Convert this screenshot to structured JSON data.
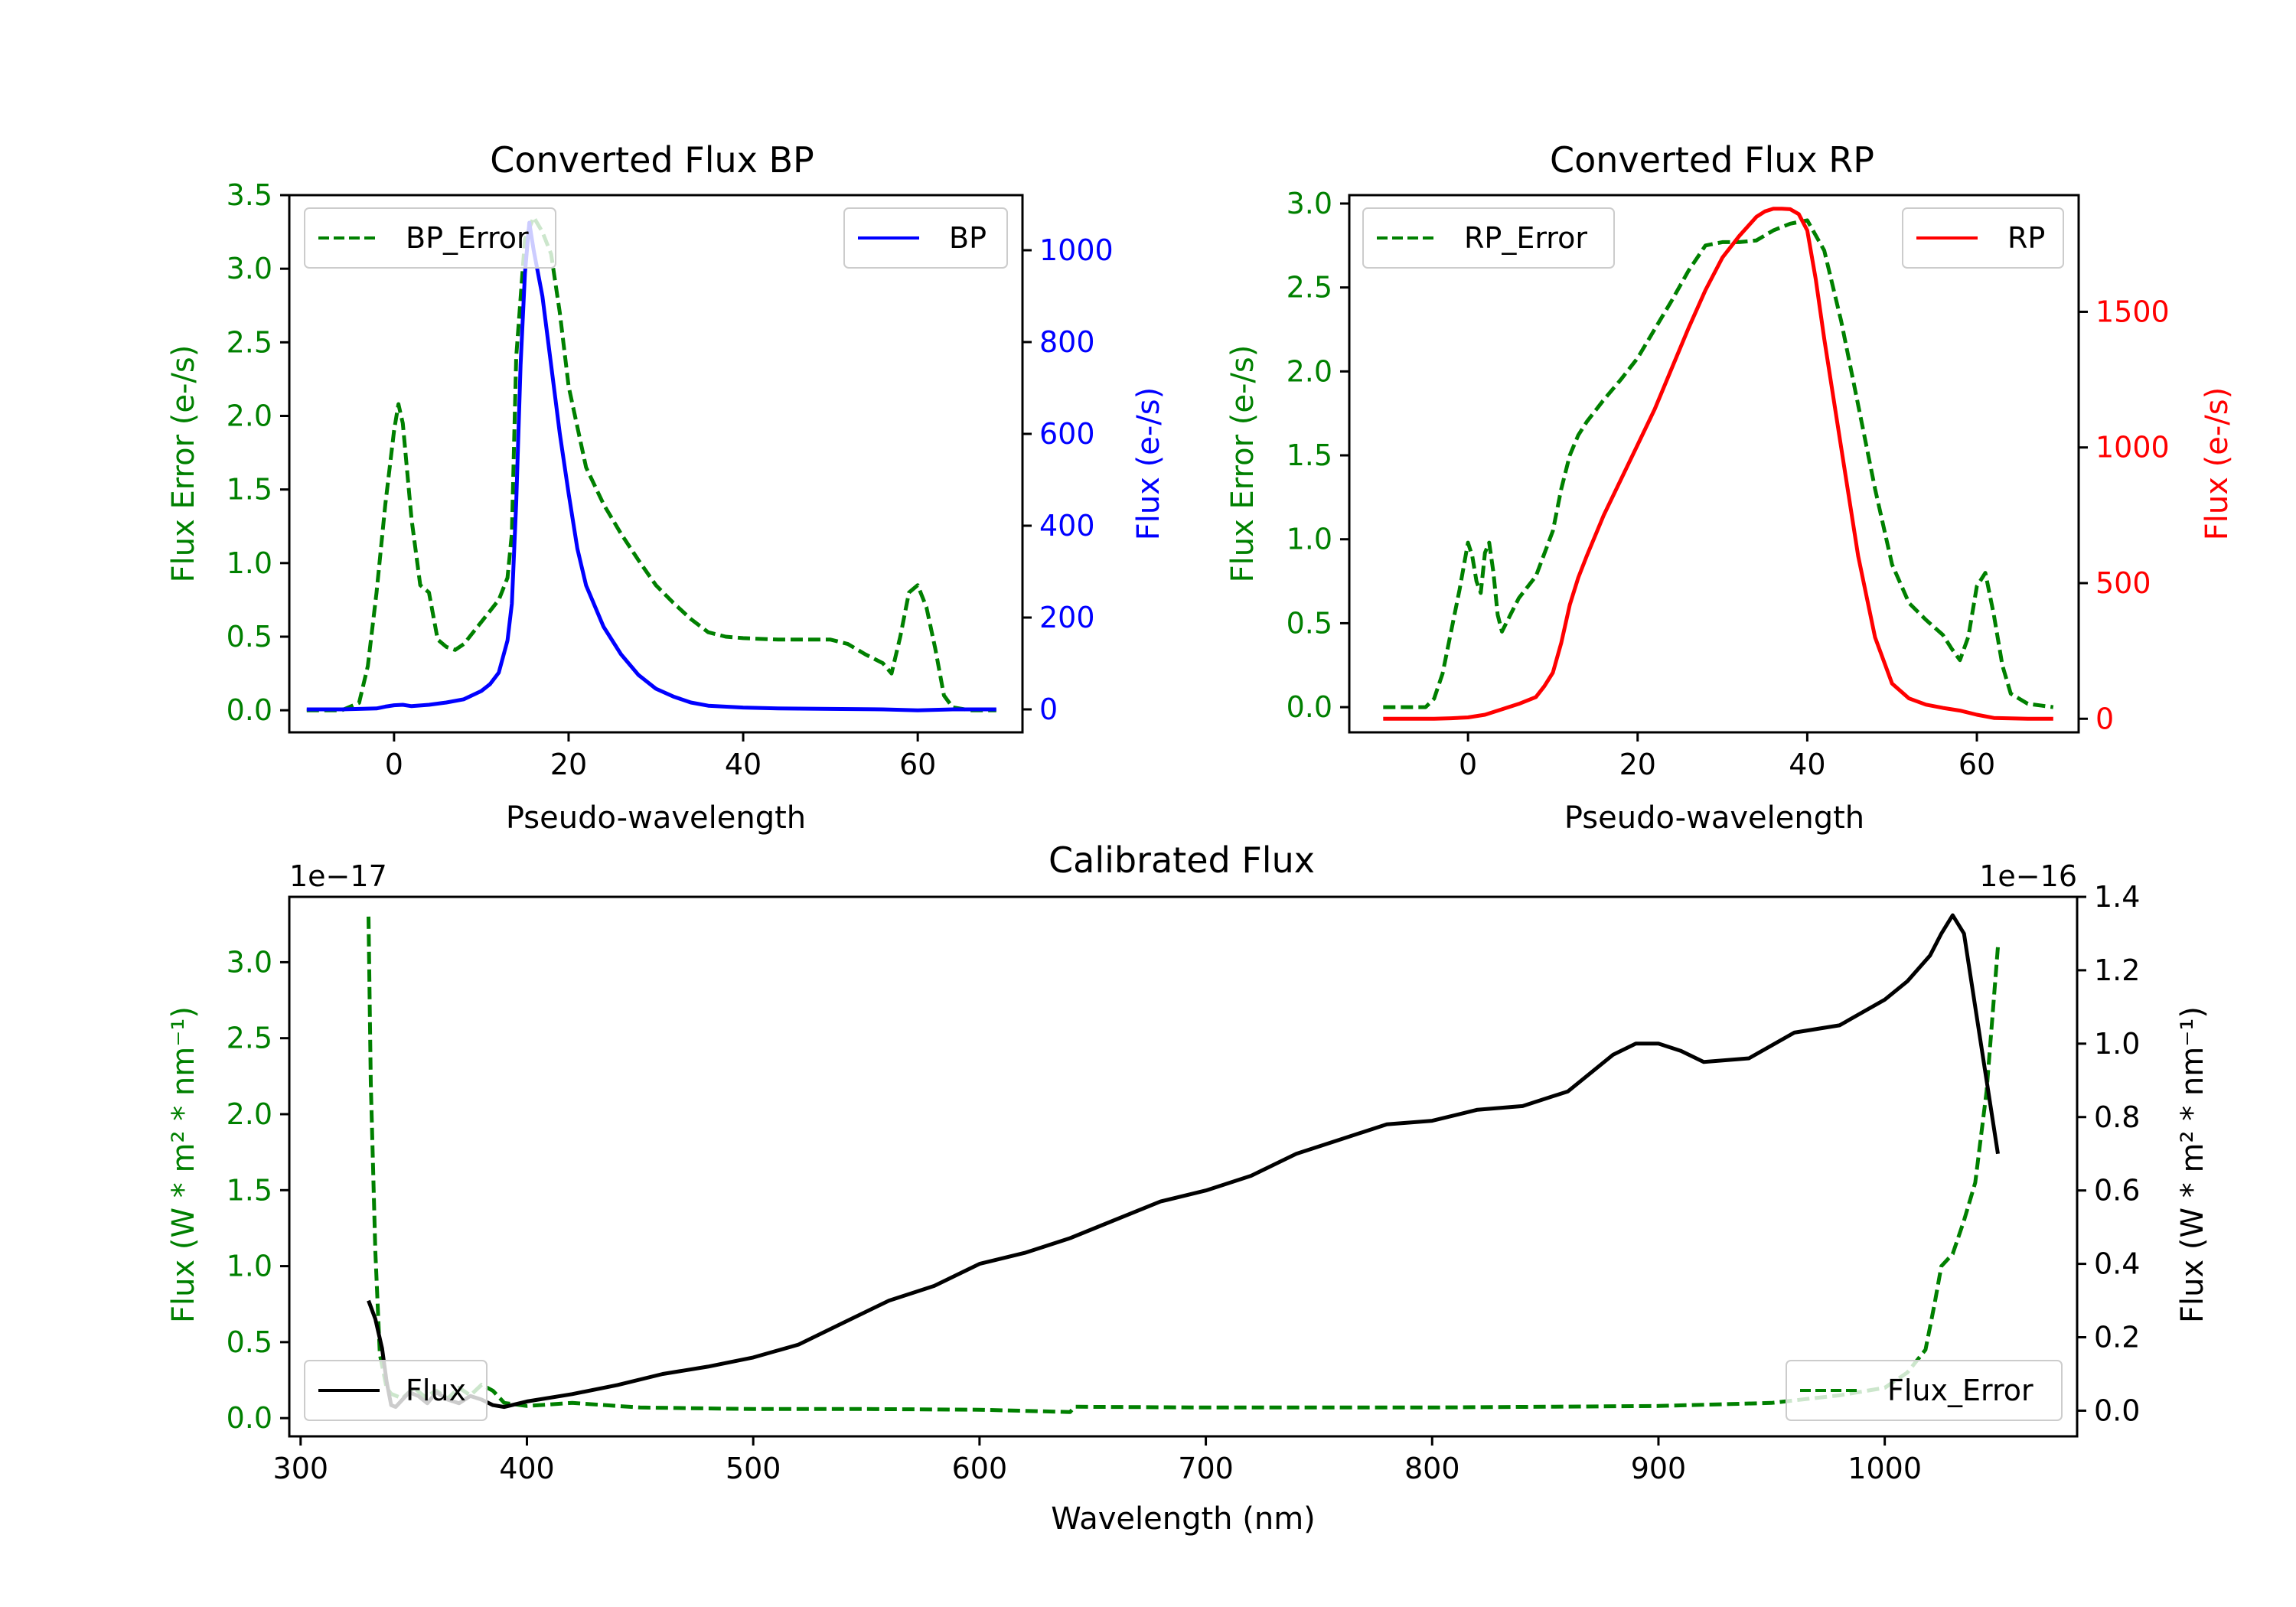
{
  "chart_data": [
    {
      "type": "line",
      "title": "Converted Flux BP",
      "xlabel": "Pseudo-wavelength",
      "ylabel_left": "Flux Error (e-/s)",
      "ylabel_right": "Flux (e-/s)",
      "xlim": [
        -12,
        72
      ],
      "ylim_left": [
        -0.15,
        3.5
      ],
      "ylim_right": [
        -50,
        1120
      ],
      "xticks": [
        "0",
        "20",
        "40",
        "60"
      ],
      "yticks_left": [
        "0.0",
        "0.5",
        "1.0",
        "1.5",
        "2.0",
        "2.5",
        "3.0",
        "3.5"
      ],
      "yticks_right": [
        "0",
        "200",
        "400",
        "600",
        "800",
        "1000"
      ],
      "colors": {
        "error": "#008000",
        "flux": "#0000ff",
        "left_axis": "#008000",
        "right_axis": "#0000ff"
      },
      "series": [
        {
          "name": "BP_Error",
          "style": "dashed",
          "axis": "left",
          "x": [
            -10,
            -6,
            -4,
            -3,
            -2,
            -1,
            0,
            0.5,
            1,
            2,
            3,
            4,
            5,
            6,
            7,
            8,
            10,
            12,
            13,
            13.5,
            14,
            15,
            16,
            17,
            18,
            19,
            20,
            22,
            24,
            26,
            28,
            30,
            32,
            34,
            36,
            38,
            40,
            44,
            48,
            50,
            52,
            54,
            56,
            57,
            58,
            59,
            60,
            61,
            62,
            63,
            64,
            66,
            69
          ],
          "values": [
            0.0,
            0.0,
            0.05,
            0.3,
            0.8,
            1.4,
            1.9,
            2.08,
            1.95,
            1.3,
            0.85,
            0.8,
            0.48,
            0.43,
            0.41,
            0.45,
            0.6,
            0.75,
            0.9,
            1.2,
            2.4,
            3.2,
            3.35,
            3.25,
            3.1,
            2.7,
            2.2,
            1.65,
            1.4,
            1.2,
            1.02,
            0.85,
            0.73,
            0.62,
            0.53,
            0.5,
            0.49,
            0.48,
            0.48,
            0.48,
            0.45,
            0.38,
            0.32,
            0.25,
            0.5,
            0.8,
            0.85,
            0.7,
            0.42,
            0.1,
            0.02,
            0.0,
            0.0
          ]
        },
        {
          "name": "BP",
          "style": "solid",
          "axis": "right",
          "x": [
            -10,
            -6,
            -4,
            -2,
            -1,
            0,
            1,
            2,
            4,
            6,
            8,
            10,
            11,
            12,
            13,
            13.5,
            14,
            14.5,
            15,
            15.5,
            16,
            17,
            18,
            19,
            20,
            21,
            22,
            24,
            26,
            28,
            30,
            32,
            34,
            36,
            40,
            44,
            50,
            56,
            60,
            64,
            69
          ],
          "values": [
            0,
            0,
            1,
            2,
            6,
            9,
            10,
            7,
            10,
            15,
            22,
            40,
            55,
            80,
            150,
            230,
            450,
            750,
            950,
            1060,
            1000,
            900,
            750,
            600,
            470,
            350,
            270,
            180,
            120,
            75,
            45,
            28,
            15,
            8,
            4,
            2,
            1,
            0,
            -2,
            0,
            0
          ]
        }
      ],
      "legend": [
        "BP_Error",
        "BP"
      ]
    },
    {
      "type": "line",
      "title": "Converted Flux RP",
      "xlabel": "Pseudo-wavelength",
      "ylabel_left": "Flux Error (e-/s)",
      "ylabel_right": "Flux (e-/s)",
      "xlim": [
        -14,
        72
      ],
      "ylim_left": [
        -0.15,
        3.05
      ],
      "ylim_right": [
        -50,
        1930
      ],
      "xticks": [
        "0",
        "20",
        "40",
        "60"
      ],
      "yticks_left": [
        "0.0",
        "0.5",
        "1.0",
        "1.5",
        "2.0",
        "2.5",
        "3.0"
      ],
      "yticks_right": [
        "0",
        "500",
        "1000",
        "1500"
      ],
      "colors": {
        "error": "#008000",
        "flux": "#ff0000",
        "left_axis": "#008000",
        "right_axis": "#ff0000"
      },
      "series": [
        {
          "name": "RP_Error",
          "style": "dashed",
          "axis": "left",
          "x": [
            -10,
            -5,
            -4,
            -3,
            -2,
            -1,
            0,
            0.5,
            1,
            1.5,
            2,
            2.5,
            3,
            3.5,
            4,
            5,
            6,
            8,
            10,
            11,
            12,
            13,
            14,
            16,
            18,
            20,
            22,
            24,
            26,
            28,
            30,
            32,
            34,
            36,
            38,
            40,
            42,
            44,
            46,
            48,
            50,
            52,
            54,
            56,
            57,
            58,
            59,
            60,
            61,
            62,
            63,
            64,
            66,
            69
          ],
          "values": [
            0.0,
            0.0,
            0.05,
            0.2,
            0.45,
            0.7,
            0.98,
            0.9,
            0.75,
            0.68,
            0.92,
            0.98,
            0.8,
            0.55,
            0.45,
            0.55,
            0.65,
            0.78,
            1.05,
            1.3,
            1.5,
            1.62,
            1.7,
            1.83,
            1.95,
            2.08,
            2.25,
            2.42,
            2.6,
            2.75,
            2.77,
            2.77,
            2.78,
            2.84,
            2.88,
            2.9,
            2.72,
            2.3,
            1.8,
            1.3,
            0.85,
            0.62,
            0.52,
            0.43,
            0.35,
            0.28,
            0.42,
            0.72,
            0.8,
            0.55,
            0.25,
            0.08,
            0.02,
            0.0
          ]
        },
        {
          "name": "RP",
          "style": "solid",
          "axis": "right",
          "x": [
            -10,
            -4,
            -2,
            0,
            2,
            4,
            6,
            8,
            9,
            10,
            11,
            12,
            13,
            14,
            16,
            18,
            20,
            22,
            24,
            26,
            28,
            30,
            32,
            34,
            35,
            36,
            37,
            38,
            39,
            40,
            41,
            42,
            44,
            46,
            48,
            50,
            52,
            54,
            56,
            58,
            60,
            62,
            66,
            69
          ],
          "values": [
            0,
            0,
            2,
            5,
            15,
            35,
            55,
            80,
            120,
            170,
            280,
            420,
            520,
            600,
            750,
            880,
            1010,
            1140,
            1290,
            1440,
            1580,
            1700,
            1780,
            1850,
            1870,
            1880,
            1880,
            1878,
            1860,
            1800,
            1620,
            1400,
            1000,
            600,
            300,
            130,
            75,
            52,
            40,
            30,
            15,
            3,
            0,
            0
          ]
        }
      ],
      "legend": [
        "RP_Error",
        "RP"
      ]
    },
    {
      "type": "line",
      "title": "Calibrated Flux",
      "xlabel": "Wavelength (nm)",
      "ylabel_left": "Flux (W * m² * nm⁻¹)",
      "ylabel_right": "Flux (W * m² * nm⁻¹)",
      "offset_left": "1e−17",
      "offset_right": "1e−16",
      "xlim": [
        295,
        1085
      ],
      "ylim_left": [
        -0.12,
        3.43
      ],
      "ylim_right": [
        -0.07,
        1.4
      ],
      "xticks": [
        "300",
        "400",
        "500",
        "600",
        "700",
        "800",
        "900",
        "1000"
      ],
      "yticks_left": [
        "0.0",
        "0.5",
        "1.0",
        "1.5",
        "2.0",
        "2.5",
        "3.0"
      ],
      "yticks_right": [
        "0.0",
        "0.2",
        "0.4",
        "0.6",
        "0.8",
        "1.0",
        "1.2",
        "1.4"
      ],
      "colors": {
        "error": "#008000",
        "flux": "#000000",
        "left_axis": "#008000",
        "right_axis": "#000000"
      },
      "series": [
        {
          "name": "Flux_Error",
          "style": "dashed",
          "axis": "left",
          "x": [
            330,
            331,
            333,
            335,
            338,
            340,
            345,
            350,
            355,
            360,
            365,
            370,
            375,
            380,
            385,
            390,
            400,
            420,
            450,
            500,
            550,
            600,
            640,
            642,
            700,
            800,
            900,
            950,
            980,
            1000,
            1010,
            1018,
            1022,
            1025,
            1030,
            1035,
            1040,
            1045,
            1050
          ],
          "values": [
            3.3,
            2.2,
            1.1,
            0.42,
            0.2,
            0.16,
            0.13,
            0.2,
            0.14,
            0.18,
            0.13,
            0.2,
            0.15,
            0.22,
            0.18,
            0.1,
            0.08,
            0.1,
            0.07,
            0.06,
            0.06,
            0.055,
            0.04,
            0.075,
            0.07,
            0.07,
            0.08,
            0.1,
            0.15,
            0.2,
            0.3,
            0.45,
            0.75,
            1.0,
            1.08,
            1.3,
            1.55,
            2.15,
            3.1
          ]
        },
        {
          "name": "Flux",
          "style": "solid",
          "axis": "right",
          "x": [
            330,
            333,
            336,
            338,
            340,
            342,
            345,
            348,
            352,
            356,
            360,
            365,
            370,
            375,
            380,
            385,
            390,
            400,
            420,
            440,
            460,
            480,
            500,
            520,
            540,
            560,
            580,
            600,
            620,
            640,
            660,
            680,
            700,
            720,
            740,
            760,
            780,
            800,
            820,
            840,
            860,
            880,
            890,
            900,
            910,
            920,
            940,
            960,
            980,
            1000,
            1010,
            1020,
            1025,
            1030,
            1035,
            1040,
            1045,
            1050
          ],
          "values": [
            0.3,
            0.25,
            0.17,
            0.08,
            0.015,
            0.01,
            0.03,
            0.05,
            0.04,
            0.02,
            0.05,
            0.03,
            0.02,
            0.04,
            0.03,
            0.015,
            0.01,
            0.025,
            0.045,
            0.07,
            0.1,
            0.12,
            0.145,
            0.18,
            0.24,
            0.3,
            0.34,
            0.4,
            0.43,
            0.47,
            0.52,
            0.57,
            0.6,
            0.64,
            0.7,
            0.74,
            0.78,
            0.79,
            0.82,
            0.83,
            0.87,
            0.97,
            1.0,
            1.0,
            0.98,
            0.95,
            0.96,
            1.03,
            1.05,
            1.12,
            1.17,
            1.24,
            1.3,
            1.35,
            1.3,
            1.1,
            0.9,
            0.7
          ]
        }
      ],
      "legend": [
        "Flux",
        "Flux_Error"
      ]
    }
  ]
}
